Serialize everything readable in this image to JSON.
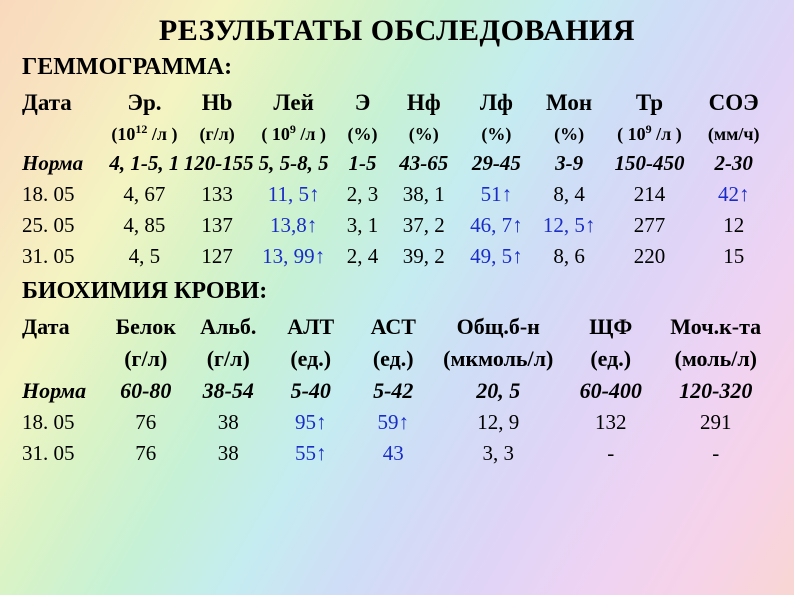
{
  "title": "РЕЗУЛЬТАТЫ ОБСЛЕДОВАНИЯ",
  "hemo": {
    "section": "ГЕММОГРАММА:",
    "widths": [
      "11%",
      "10%",
      "9%",
      "11%",
      "7%",
      "9%",
      "10%",
      "9%",
      "12%",
      "10%"
    ],
    "headers": [
      "Дата",
      "Эр.",
      "Hb",
      "Лей",
      "Э",
      "Нф",
      "Лф",
      "Мон",
      "Тр",
      "СОЭ"
    ],
    "units": [
      "",
      "(10¹² /л )",
      "(г/л)",
      "( 10⁹ /л )",
      "(%)",
      "(%)",
      "(%)",
      "(%)",
      "( 10⁹ /л )",
      "(мм/ч)"
    ],
    "norm_label": "Норма",
    "norm": [
      "4, 1-5, 1",
      "120-155",
      "5, 5-8, 5",
      "1-5",
      "43-65",
      "29-45",
      "3-9",
      "150-450",
      "2-30"
    ],
    "rows": [
      {
        "date": "18. 05",
        "cells": [
          {
            "v": "4, 67"
          },
          {
            "v": "133"
          },
          {
            "v": "11, 5↑",
            "hi": true
          },
          {
            "v": "2, 3"
          },
          {
            "v": "38, 1"
          },
          {
            "v": "51↑",
            "hi": true
          },
          {
            "v": "8, 4"
          },
          {
            "v": "214"
          },
          {
            "v": "42↑",
            "hi": true
          }
        ]
      },
      {
        "date": "25. 05",
        "cells": [
          {
            "v": "4, 85"
          },
          {
            "v": "137"
          },
          {
            "v": "13,8↑",
            "hi": true
          },
          {
            "v": "3, 1"
          },
          {
            "v": "37, 2"
          },
          {
            "v": "46, 7↑",
            "hi": true
          },
          {
            "v": "12, 5↑",
            "hi": true
          },
          {
            "v": "277"
          },
          {
            "v": "12"
          }
        ]
      },
      {
        "date": "31. 05",
        "cells": [
          {
            "v": "4, 5"
          },
          {
            "v": "127"
          },
          {
            "v": "13, 99↑",
            "hi": true
          },
          {
            "v": "2, 4"
          },
          {
            "v": "39, 2"
          },
          {
            "v": "49, 5↑",
            "hi": true
          },
          {
            "v": "8, 6"
          },
          {
            "v": "220"
          },
          {
            "v": "15"
          }
        ]
      }
    ]
  },
  "bio": {
    "section": "БИОХИМИЯ КРОВИ:",
    "widths": [
      "11%",
      "11%",
      "11%",
      "11%",
      "11%",
      "17%",
      "13%",
      "15%"
    ],
    "headers": [
      "Дата",
      "Белок",
      "Альб.",
      "АЛТ",
      "АСТ",
      "Общ.б-н",
      "ЩФ",
      "Моч.к-та"
    ],
    "units": [
      "",
      "(г/л)",
      "(г/л)",
      "(ед.)",
      "(ед.)",
      "(мкмоль/л)",
      "(ед.)",
      "(моль/л)"
    ],
    "norm_label": "Норма",
    "norm": [
      "60-80",
      "38-54",
      "5-40",
      "5-42",
      "20, 5",
      "60-400",
      "120-320"
    ],
    "rows": [
      {
        "date": "18. 05",
        "cells": [
          {
            "v": "76"
          },
          {
            "v": "38"
          },
          {
            "v": "95↑",
            "hi": true
          },
          {
            "v": "59↑",
            "hi": true
          },
          {
            "v": "12, 9"
          },
          {
            "v": "132"
          },
          {
            "v": "291"
          }
        ]
      },
      {
        "date": "31. 05",
        "cells": [
          {
            "v": "76"
          },
          {
            "v": "38"
          },
          {
            "v": "55↑",
            "hi": true
          },
          {
            "v": "43",
            "hi": true
          },
          {
            "v": "3, 3"
          },
          {
            "v": "-"
          },
          {
            "v": "-"
          }
        ]
      }
    ]
  },
  "colors": {
    "highlight": "#1a2cc7",
    "text": "#000000"
  }
}
